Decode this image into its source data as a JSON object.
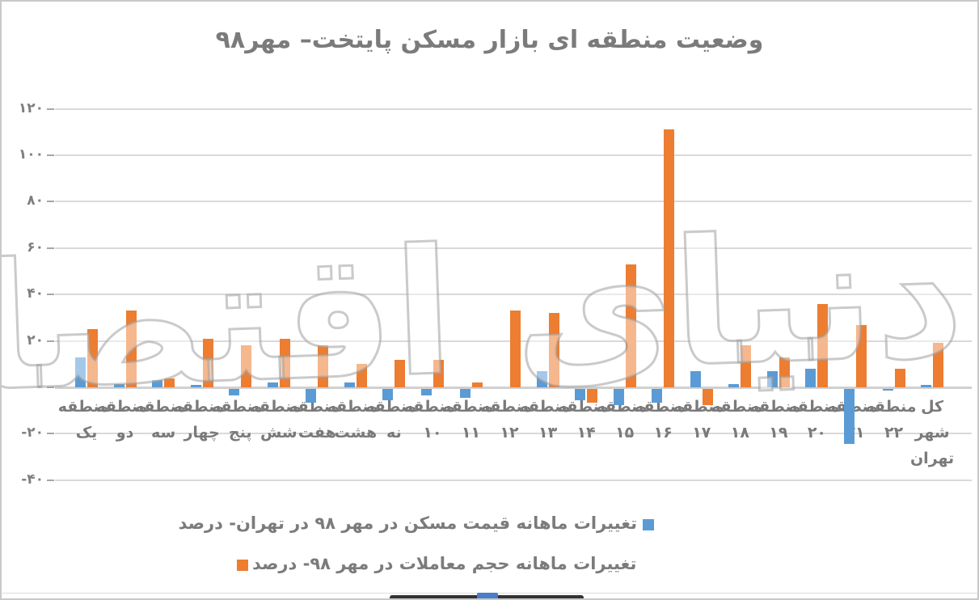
{
  "chart_data": {
    "type": "bar",
    "title": "وضعیت منطقه ای بازار مسکن پایتخت– مهر۹۸",
    "categories": [
      {
        "name": "منطقه یک",
        "lines": [
          "منطقه",
          "یک"
        ]
      },
      {
        "name": "منطقه دو",
        "lines": [
          "منطقه",
          "دو"
        ]
      },
      {
        "name": "منطقه سه",
        "lines": [
          "منطقه",
          "سه"
        ]
      },
      {
        "name": "منطقه چهار",
        "lines": [
          "منطقه",
          "چهار"
        ]
      },
      {
        "name": "منطقه پنج",
        "lines": [
          "منطقه",
          "پنج"
        ]
      },
      {
        "name": "منطقه شش",
        "lines": [
          "منطقه",
          "شش"
        ]
      },
      {
        "name": "منطقه هفت",
        "lines": [
          "منطقه",
          "هفت"
        ]
      },
      {
        "name": "منطقه هشت",
        "lines": [
          "منطقه",
          "هشت"
        ]
      },
      {
        "name": "منطقه نه",
        "lines": [
          "منطقه",
          "نه"
        ]
      },
      {
        "name": "منطقه ۱۰",
        "lines": [
          "منطقه",
          "۱۰"
        ]
      },
      {
        "name": "منطقه ۱۱",
        "lines": [
          "منطقه",
          "۱۱"
        ]
      },
      {
        "name": "منطقه ۱۲",
        "lines": [
          "منطقه",
          "۱۲"
        ]
      },
      {
        "name": "منطقه ۱۳",
        "lines": [
          "منطقه",
          "۱۳"
        ]
      },
      {
        "name": "منطقه ۱۴",
        "lines": [
          "منطقه",
          "۱۴"
        ]
      },
      {
        "name": "منطقه ۱۵",
        "lines": [
          "منطقه",
          "۱۵"
        ]
      },
      {
        "name": "منطقه ۱۶",
        "lines": [
          "منطقه",
          "۱۶"
        ]
      },
      {
        "name": "منطقه ۱۷",
        "lines": [
          "منطقه",
          "۱۷"
        ]
      },
      {
        "name": "منطقه ۱۸",
        "lines": [
          "منطقه",
          "۱۸"
        ]
      },
      {
        "name": "منطقه ۱۹",
        "lines": [
          "منطقه",
          "۱۹"
        ]
      },
      {
        "name": "منطقه ۲۰",
        "lines": [
          "منطقه",
          "۲۰"
        ]
      },
      {
        "name": "منطقه ۲۱",
        "lines": [
          "منطقه",
          "۲۱"
        ]
      },
      {
        "name": "منطقه ۲۲",
        "lines": [
          "منطقه",
          "۲۲"
        ]
      },
      {
        "name": "کل شهر تهران",
        "lines": [
          "کل",
          "شهر",
          "تهران"
        ]
      }
    ],
    "series": [
      {
        "name": "تغییرات ماهانه قیمت مسکن در مهر  ۹۸ در تهران- درصد",
        "color": "#5B9BD5",
        "values": [
          13,
          1.5,
          3,
          1,
          -3,
          2,
          -6,
          2,
          -5,
          -3,
          -4,
          0,
          7,
          -5,
          -7,
          -6,
          7,
          1.5,
          7,
          8,
          -24,
          -1,
          1
        ]
      },
      {
        "name": "تغییرات ماهانه حجم معاملات در مهر ۹۸- درصد",
        "color": "#ED7D31",
        "values": [
          25,
          33,
          4,
          21,
          18,
          21,
          18,
          10,
          12,
          12,
          2,
          33,
          32,
          -6,
          53,
          111,
          -7,
          18,
          13,
          36,
          27,
          8,
          19
        ]
      }
    ],
    "ylim": [
      -40,
      120
    ],
    "y_tick_step": 20,
    "y_ticks": [
      {
        "value": 120,
        "label": "۱۲۰"
      },
      {
        "value": 100,
        "label": "۱۰۰"
      },
      {
        "value": 80,
        "label": "۸۰"
      },
      {
        "value": 60,
        "label": "۶۰"
      },
      {
        "value": 40,
        "label": "۴۰"
      },
      {
        "value": 20,
        "label": "۲۰"
      },
      {
        "value": 0,
        "label": "۰"
      },
      {
        "value": -20,
        "label": "-۲۰"
      },
      {
        "value": -40,
        "label": "-۴۰"
      }
    ],
    "grid": "horizontal",
    "legend_position": "bottom"
  },
  "watermark": {
    "text": "دنیای اقتصاد"
  },
  "colors": {
    "title_text": "#7b7b7b",
    "axis_text": "#7f7f7f",
    "gridline": "#d9d9d9",
    "price_series": "#5B9BD5",
    "volume_series": "#ED7D31",
    "scrollbar_track": "#333333",
    "scrollbar_thumb": "#4a7cc7"
  }
}
